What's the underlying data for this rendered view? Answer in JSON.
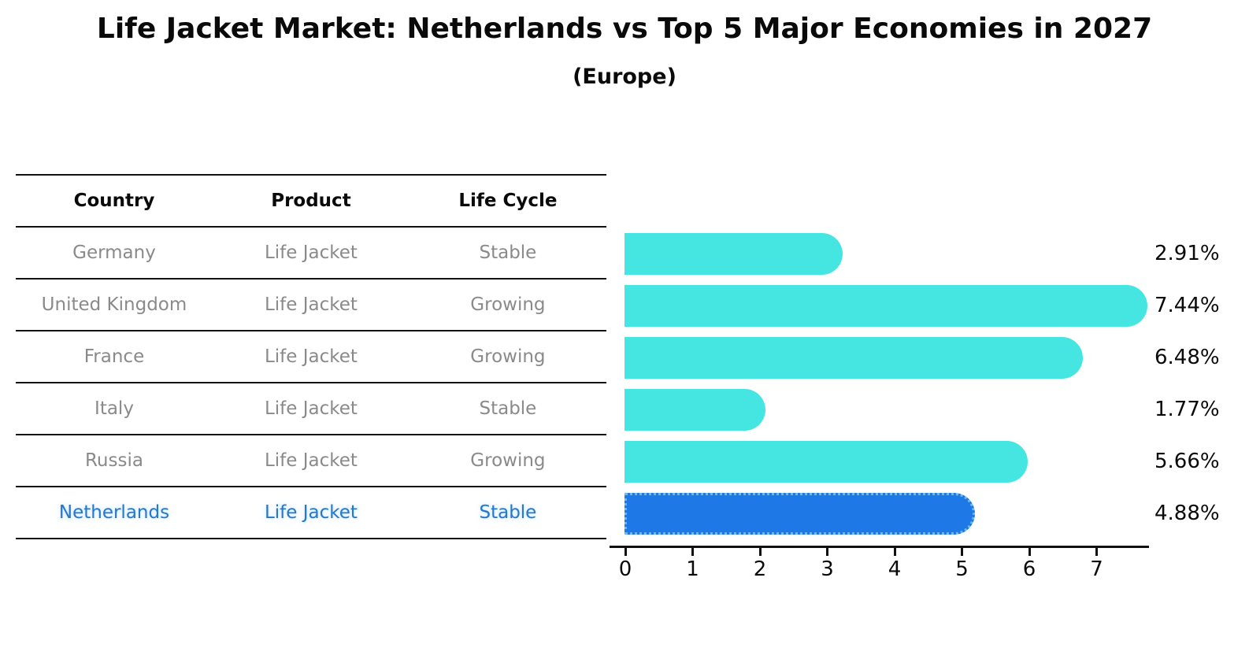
{
  "title": "Life Jacket Market: Netherlands vs Top 5 Major Economies in 2027",
  "subtitle": "(Europe)",
  "table": {
    "headers": [
      "Country",
      "Product",
      "Life Cycle"
    ],
    "rows": [
      {
        "country": "Germany",
        "product": "Life Jacket",
        "life_cycle": "Stable",
        "highlighted": false
      },
      {
        "country": "United Kingdom",
        "product": "Life Jacket",
        "life_cycle": "Growing",
        "highlighted": false
      },
      {
        "country": "France",
        "product": "Life Jacket",
        "life_cycle": "Growing",
        "highlighted": false
      },
      {
        "country": "Italy",
        "product": "Life Jacket",
        "life_cycle": "Stable",
        "highlighted": false
      },
      {
        "country": "Russia",
        "product": "Life Jacket",
        "life_cycle": "Growing",
        "highlighted": false
      },
      {
        "country": "Netherlands",
        "product": "Life Jacket",
        "life_cycle": "Stable",
        "highlighted": true
      }
    ]
  },
  "chart_data": {
    "type": "bar",
    "orientation": "horizontal",
    "title": "Life Jacket Market: Netherlands vs Top 5 Major Economies in 2027",
    "subtitle": "(Europe)",
    "categories": [
      "Germany",
      "United Kingdom",
      "France",
      "Italy",
      "Russia",
      "Netherlands"
    ],
    "values": [
      2.91,
      7.44,
      6.48,
      1.77,
      5.66,
      4.88
    ],
    "value_labels": [
      "2.91%",
      "7.44%",
      "6.48%",
      "1.77%",
      "5.66%",
      "4.88%"
    ],
    "unit": "%",
    "xlabel": "",
    "ylabel": "",
    "x_tick_labels": [
      "0",
      "1",
      "2",
      "3",
      "4",
      "5",
      "6",
      "7"
    ],
    "xlim": [
      0,
      7.8
    ],
    "grid": false,
    "legend": false,
    "highlighted_category": "Netherlands",
    "bar_color": "#45e6e1",
    "highlight_bar_color": "#1e78e6",
    "highlight_bar_edge_color": "#6cb8f4",
    "highlight_text_color": "#2878c8",
    "text_color": "#0a0a0a",
    "muted_text_color": "#8a8a8a"
  }
}
